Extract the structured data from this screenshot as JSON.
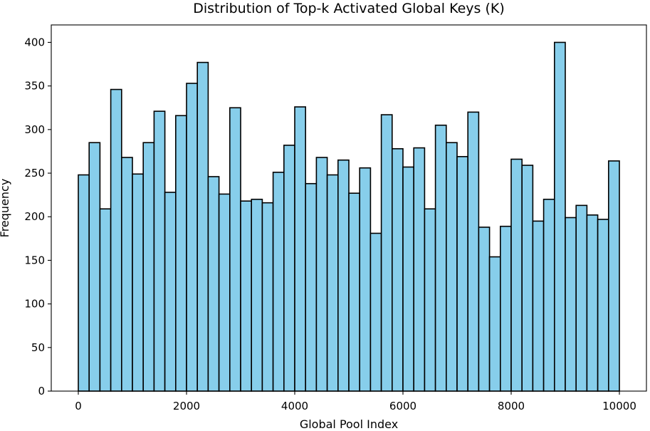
{
  "chart_data": {
    "type": "bar",
    "title": "Distribution of Top-k Activated Global Keys (K)",
    "xlabel": "Global Pool Index",
    "ylabel": "Frequency",
    "xlim": [
      -500,
      10500
    ],
    "ylim": [
      0,
      420
    ],
    "x_ticks": [
      0,
      2000,
      4000,
      6000,
      8000,
      10000
    ],
    "y_ticks": [
      0,
      50,
      100,
      150,
      200,
      250,
      300,
      350,
      400
    ],
    "bin_start": 0,
    "bin_end": 10000,
    "bin_count": 50,
    "values": [
      248,
      285,
      209,
      346,
      268,
      249,
      285,
      321,
      228,
      316,
      353,
      377,
      246,
      226,
      325,
      218,
      220,
      216,
      251,
      282,
      326,
      238,
      268,
      248,
      265,
      227,
      256,
      181,
      317,
      278,
      257,
      279,
      209,
      305,
      285,
      269,
      320,
      188,
      154,
      189,
      266,
      259,
      195,
      220,
      400,
      199,
      213,
      202,
      197,
      264
    ],
    "grid": false,
    "legend": "none",
    "bar_color": "#87ceeb",
    "edge_color": "#000000"
  }
}
